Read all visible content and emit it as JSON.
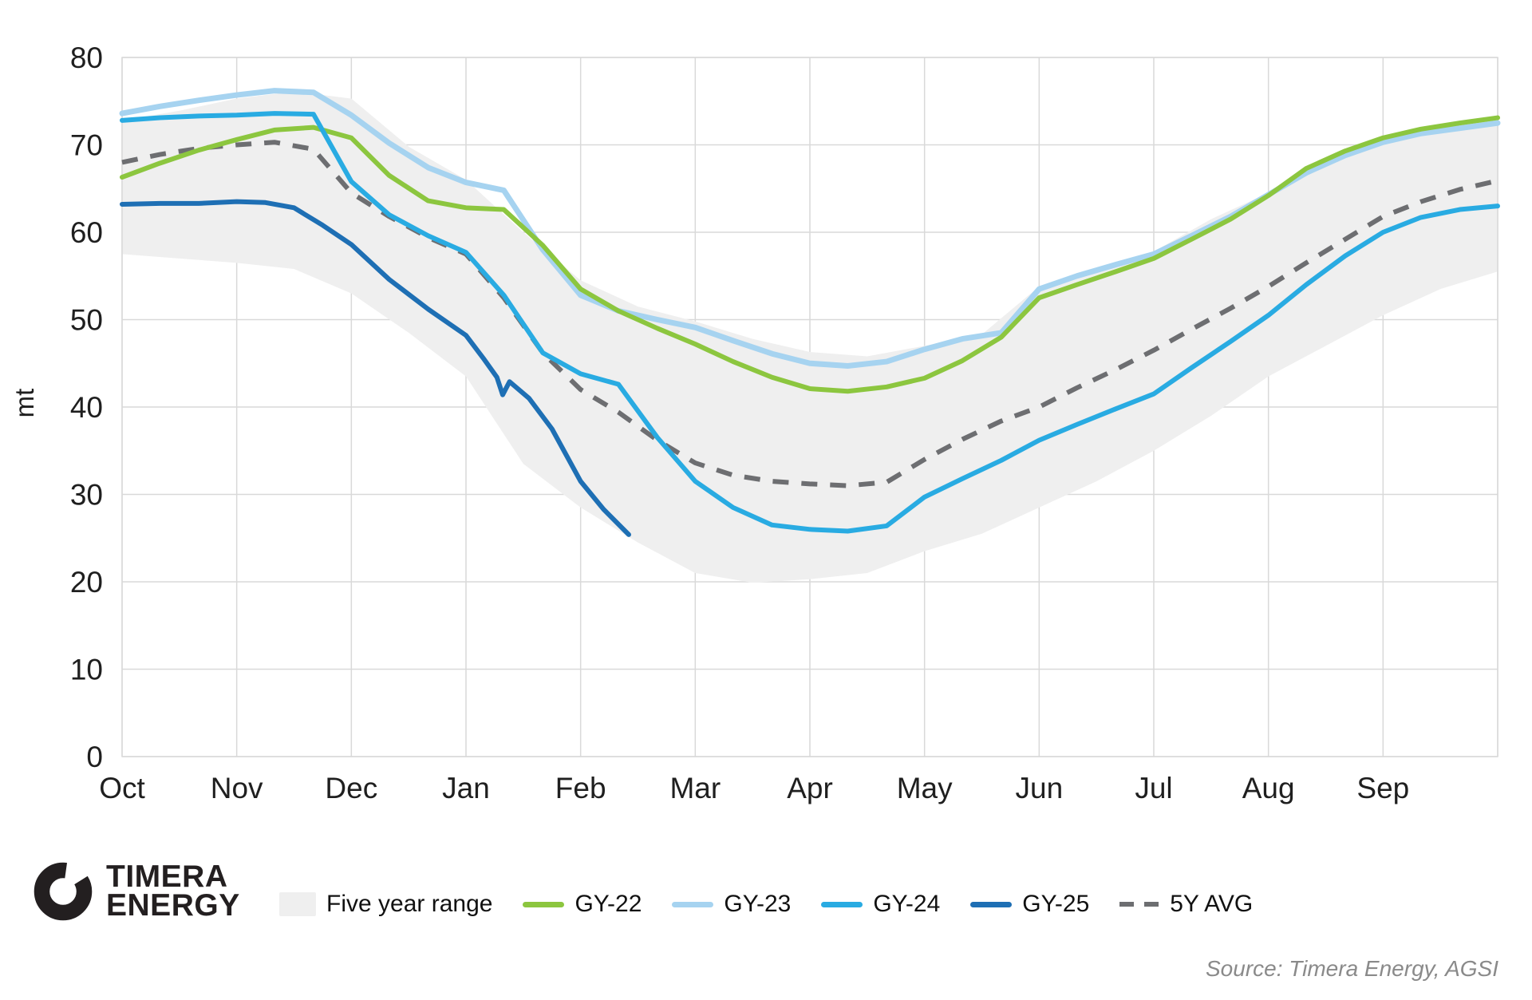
{
  "logo": {
    "line1": "TIMERA",
    "line2": "ENERGY",
    "color": "#231f20"
  },
  "source_note": "Source: Timera Energy, AGSI",
  "legend": [
    {
      "label": "Five year range",
      "type": "area",
      "color": "#efefef"
    },
    {
      "label": "GY-22",
      "type": "line",
      "color": "#8cc63f"
    },
    {
      "label": "GY-23",
      "type": "line",
      "color": "#a6d3f0"
    },
    {
      "label": "GY-24",
      "type": "line",
      "color": "#29abe2"
    },
    {
      "label": "GY-25",
      "type": "line",
      "color": "#1e6fb4"
    },
    {
      "label": "5Y AVG",
      "type": "dashed",
      "color": "#6d6e71"
    }
  ],
  "chart_data": {
    "type": "line",
    "title": "",
    "xlabel": "",
    "ylabel": "mt",
    "x_unit_note": "gas year months, Oct-Sep (x in month units, 0 = start Oct)",
    "ylim": [
      0,
      80
    ],
    "y_ticks": [
      0,
      10,
      20,
      30,
      40,
      50,
      60,
      70,
      80
    ],
    "x_tick_labels": [
      "Oct",
      "Nov",
      "Dec",
      "Jan",
      "Feb",
      "Mar",
      "Apr",
      "May",
      "Jun",
      "Jul",
      "Aug",
      "Sep"
    ],
    "grid": true,
    "grid_color": "#d9d9d9",
    "axis_text_color": "#1f1f1f",
    "legend_position": "bottom",
    "band": {
      "name": "Five year range",
      "color": "#efefef",
      "x": [
        0,
        0.5,
        1,
        1.5,
        2,
        2.5,
        3,
        3.5,
        4,
        4.5,
        5,
        5.5,
        6,
        6.5,
        7,
        7.5,
        8,
        8.5,
        9,
        9.5,
        10,
        10.5,
        11,
        11.5,
        12
      ],
      "upper": [
        72.8,
        73.9,
        75.3,
        76.1,
        75.3,
        69.8,
        66.0,
        60.0,
        54.5,
        51.5,
        49.8,
        47.8,
        46.3,
        45.8,
        47.0,
        48.3,
        53.8,
        55.9,
        57.8,
        61.5,
        64.5,
        68.0,
        70.5,
        71.7,
        72.3
      ],
      "lower": [
        57.5,
        57.0,
        56.5,
        55.8,
        53.0,
        48.5,
        43.5,
        33.5,
        28.5,
        24.5,
        21.0,
        19.9,
        20.3,
        21.0,
        23.5,
        25.5,
        28.5,
        31.5,
        35.0,
        39.0,
        43.5,
        47.0,
        50.5,
        53.5,
        55.5
      ]
    },
    "series": [
      {
        "name": "5Y AVG",
        "color": "#6d6e71",
        "style": "dashed",
        "width": 6,
        "x": [
          0,
          0.33,
          0.67,
          1,
          1.33,
          1.67,
          2,
          2.33,
          2.67,
          3,
          3.33,
          3.67,
          4,
          4.33,
          4.67,
          5,
          5.33,
          5.67,
          6,
          6.33,
          6.67,
          7,
          7.33,
          7.67,
          8,
          8.33,
          8.67,
          9,
          9.33,
          9.67,
          10,
          10.33,
          10.67,
          11,
          11.33,
          11.67,
          12
        ],
        "values": [
          68.0,
          68.9,
          69.6,
          70.0,
          70.3,
          69.5,
          64.5,
          61.8,
          59.4,
          57.5,
          52.5,
          46.2,
          42.0,
          39.4,
          36.2,
          33.6,
          32.2,
          31.5,
          31.2,
          31.0,
          31.4,
          34.0,
          36.3,
          38.4,
          40.0,
          42.2,
          44.3,
          46.5,
          48.9,
          51.3,
          53.8,
          56.5,
          59.2,
          61.8,
          63.5,
          64.9,
          65.9
        ]
      },
      {
        "name": "GY-23",
        "color": "#a6d3f0",
        "style": "solid",
        "width": 7,
        "x": [
          0,
          0.33,
          0.67,
          1,
          1.33,
          1.67,
          2,
          2.33,
          2.67,
          3,
          3.33,
          3.67,
          4,
          4.33,
          4.67,
          5,
          5.33,
          5.67,
          6,
          6.33,
          6.67,
          7,
          7.33,
          7.67,
          8,
          8.33,
          8.67,
          9,
          9.33,
          9.67,
          10,
          10.33,
          10.67,
          11,
          11.33,
          11.67,
          12
        ],
        "values": [
          73.6,
          74.4,
          75.1,
          75.7,
          76.2,
          76.0,
          73.4,
          70.2,
          67.4,
          65.7,
          64.8,
          58.0,
          52.8,
          51.0,
          50.0,
          49.1,
          47.6,
          46.1,
          45.0,
          44.7,
          45.2,
          46.6,
          47.8,
          48.5,
          53.5,
          55.0,
          56.3,
          57.5,
          59.6,
          61.8,
          64.3,
          66.8,
          68.8,
          70.3,
          71.3,
          71.9,
          72.5
        ]
      },
      {
        "name": "GY-22",
        "color": "#8cc63f",
        "style": "solid",
        "width": 6,
        "x": [
          0,
          0.33,
          0.67,
          1,
          1.33,
          1.67,
          2,
          2.33,
          2.67,
          3,
          3.33,
          3.67,
          4,
          4.33,
          4.67,
          5,
          5.33,
          5.67,
          6,
          6.33,
          6.67,
          7,
          7.33,
          7.67,
          8,
          8.33,
          8.67,
          9,
          9.33,
          9.67,
          10,
          10.33,
          10.67,
          11,
          11.33,
          11.67,
          12
        ],
        "values": [
          66.3,
          67.9,
          69.4,
          70.6,
          71.7,
          72.0,
          70.8,
          66.5,
          63.6,
          62.8,
          62.6,
          58.5,
          53.5,
          51.0,
          49.0,
          47.2,
          45.2,
          43.4,
          42.1,
          41.8,
          42.3,
          43.3,
          45.3,
          48.0,
          52.5,
          54.0,
          55.5,
          57.0,
          59.2,
          61.5,
          64.2,
          67.3,
          69.3,
          70.8,
          71.8,
          72.5,
          73.1
        ]
      },
      {
        "name": "GY-24",
        "color": "#29abe2",
        "style": "solid",
        "width": 6,
        "x": [
          0,
          0.33,
          0.67,
          1,
          1.33,
          1.67,
          2,
          2.33,
          2.67,
          3,
          3.33,
          3.67,
          4,
          4.33,
          4.67,
          5,
          5.33,
          5.67,
          6,
          6.33,
          6.67,
          7,
          7.33,
          7.67,
          8,
          8.33,
          8.67,
          9,
          9.33,
          9.67,
          10,
          10.33,
          10.67,
          11,
          11.33,
          11.67,
          12
        ],
        "values": [
          72.8,
          73.1,
          73.3,
          73.4,
          73.6,
          73.5,
          65.8,
          62.0,
          59.6,
          57.7,
          52.8,
          46.2,
          43.8,
          42.6,
          36.5,
          31.5,
          28.5,
          26.5,
          26.0,
          25.8,
          26.4,
          29.7,
          31.8,
          33.9,
          36.2,
          38.0,
          39.8,
          41.5,
          44.5,
          47.5,
          50.5,
          54.0,
          57.3,
          60.0,
          61.7,
          62.6,
          63.0
        ]
      },
      {
        "name": "GY-25",
        "color": "#1e6fb4",
        "style": "solid",
        "width": 6,
        "x": [
          0,
          0.33,
          0.67,
          1,
          1.25,
          1.5,
          1.75,
          2,
          2.33,
          2.67,
          3,
          3.15,
          3.27,
          3.32,
          3.38,
          3.55,
          3.75,
          4,
          4.2,
          4.42
        ],
        "values": [
          63.2,
          63.3,
          63.3,
          63.5,
          63.4,
          62.8,
          60.8,
          58.6,
          54.6,
          51.2,
          48.2,
          45.6,
          43.4,
          41.4,
          42.9,
          41.0,
          37.5,
          31.5,
          28.3,
          25.4
        ]
      }
    ]
  }
}
